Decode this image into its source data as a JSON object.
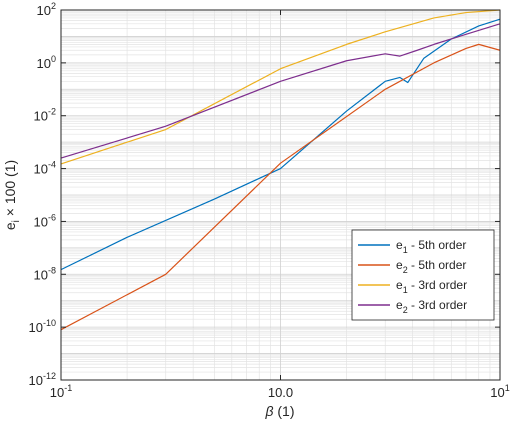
{
  "chart_data": {
    "type": "line",
    "x_scale": "log",
    "y_scale": "log",
    "xlim": [
      0.1,
      10
    ],
    "ylim": [
      1e-12,
      100
    ],
    "grid": true,
    "minor_grid": true,
    "xlabel": {
      "symbol": "β",
      "suffix": " (1)"
    },
    "ylabel": {
      "base": "e",
      "subscript": "i",
      "suffix": " × 100 (1)"
    },
    "x_ticks": [
      {
        "value": 0.1,
        "mantissa": "10",
        "exp": "-1"
      },
      {
        "value": 1,
        "label": "10.0"
      },
      {
        "value": 10,
        "mantissa": "10",
        "exp": "1"
      }
    ],
    "y_ticks": [
      {
        "value": 1e-12,
        "mantissa": "10",
        "exp": "-12"
      },
      {
        "value": 1e-10,
        "mantissa": "10",
        "exp": "-10"
      },
      {
        "value": 1e-08,
        "mantissa": "10",
        "exp": "-8"
      },
      {
        "value": 1e-06,
        "mantissa": "10",
        "exp": "-6"
      },
      {
        "value": 0.0001,
        "mantissa": "10",
        "exp": "-4"
      },
      {
        "value": 0.01,
        "mantissa": "10",
        "exp": "-2"
      },
      {
        "value": 1,
        "mantissa": "10",
        "exp": "0"
      },
      {
        "value": 100,
        "mantissa": "10",
        "exp": "2"
      }
    ],
    "legend_position": "lower-right",
    "series": [
      {
        "name": {
          "base": "e",
          "sub": "1",
          "rest": " - 5th order"
        },
        "color": "#0072BD",
        "x": [
          0.1,
          0.2,
          0.5,
          1,
          2,
          3,
          3.5,
          3.8,
          4.5,
          6,
          8,
          10
        ],
        "y": [
          1.5e-08,
          2.5e-07,
          7e-06,
          0.0001,
          0.015,
          0.2,
          0.28,
          0.18,
          1.5,
          8,
          25,
          45
        ]
      },
      {
        "name": {
          "base": "e",
          "sub": "2",
          "rest": " - 5th order"
        },
        "color": "#D95319",
        "x": [
          0.1,
          0.3,
          1,
          3,
          5,
          7,
          8,
          10
        ],
        "y": [
          8e-11,
          1e-08,
          0.00016,
          0.1,
          1,
          3.5,
          5,
          3
        ]
      },
      {
        "name": {
          "base": "e",
          "sub": "1",
          "rest": " - 3rd order"
        },
        "color": "#EDB120",
        "x": [
          0.1,
          0.3,
          1,
          2,
          3,
          5,
          7,
          10
        ],
        "y": [
          0.00015,
          0.003,
          0.6,
          5,
          15,
          50,
          80,
          100
        ]
      },
      {
        "name": {
          "base": "e",
          "sub": "2",
          "rest": " - 3rd order"
        },
        "color": "#7E2F8E",
        "x": [
          0.1,
          0.3,
          1,
          2,
          3,
          3.5,
          4.2,
          5,
          7,
          10
        ],
        "y": [
          0.00025,
          0.004,
          0.2,
          1.2,
          2.2,
          1.8,
          3,
          5,
          12,
          30
        ]
      }
    ]
  }
}
